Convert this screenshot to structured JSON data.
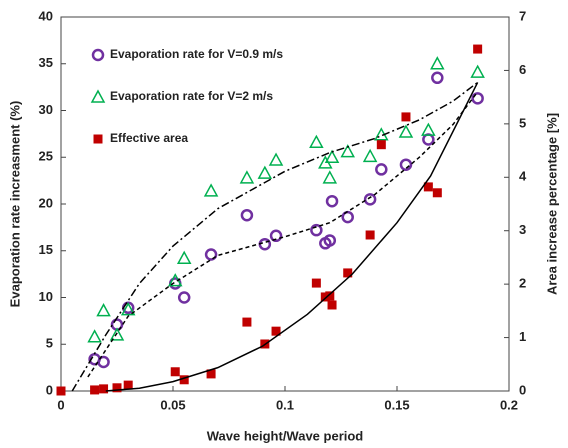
{
  "chart_data": {
    "type": "scatter",
    "x_label": "Wave height/Wave period",
    "y_label": "Evaporation rate increasment (%)",
    "y2_label": "Area increase percentage [%]",
    "xlim": [
      0,
      0.2
    ],
    "xticks": [
      0,
      0.05,
      0.1,
      0.15,
      0.2
    ],
    "ylim": [
      0,
      40
    ],
    "yticks": [
      0,
      5,
      10,
      15,
      20,
      25,
      30,
      35,
      40
    ],
    "y2lim": [
      0,
      7
    ],
    "y2ticks": [
      0,
      1,
      2,
      3,
      4,
      5,
      6,
      7
    ],
    "grid": false,
    "legend": "upper left",
    "series": [
      {
        "name": "Evaporation rate for V=0.9 m/s",
        "color": "#7030a0",
        "marker": "circle",
        "x": [
          0.015,
          0.019,
          0.025,
          0.03,
          0.051,
          0.055,
          0.067,
          0.083,
          0.091,
          0.096,
          0.114,
          0.118,
          0.12,
          0.121,
          0.128,
          0.138,
          0.143,
          0.154,
          0.164,
          0.168,
          0.186
        ],
        "values": [
          3.4,
          3.1,
          7.1,
          8.9,
          11.5,
          10.0,
          14.6,
          18.8,
          15.7,
          16.6,
          17.2,
          15.8,
          16.1,
          20.3,
          18.6,
          20.5,
          23.7,
          24.2,
          26.9,
          33.5,
          31.3
        ]
      },
      {
        "name": "Evaporation rate for V=2 m/s",
        "color": "#00b050",
        "marker": "triangle",
        "x": [
          0.015,
          0.019,
          0.025,
          0.03,
          0.051,
          0.055,
          0.067,
          0.083,
          0.091,
          0.096,
          0.114,
          0.118,
          0.12,
          0.121,
          0.128,
          0.138,
          0.143,
          0.154,
          0.164,
          0.168,
          0.186
        ],
        "values": [
          5.8,
          8.6,
          6.0,
          8.7,
          11.8,
          14.2,
          21.4,
          22.8,
          23.3,
          24.7,
          26.6,
          24.4,
          22.8,
          25.0,
          25.6,
          25.1,
          27.4,
          27.7,
          27.9,
          35.0,
          34.1
        ]
      },
      {
        "name": "Effective area",
        "color": "#c00000",
        "marker": "square",
        "axis": "y2",
        "x": [
          0,
          0.015,
          0.019,
          0.025,
          0.03,
          0.051,
          0.055,
          0.067,
          0.083,
          0.091,
          0.096,
          0.114,
          0.118,
          0.12,
          0.121,
          0.128,
          0.138,
          0.143,
          0.154,
          0.164,
          0.168,
          0.186
        ],
        "values": [
          0,
          0.02,
          0.04,
          0.06,
          0.11,
          0.36,
          0.21,
          0.32,
          1.29,
          0.88,
          1.12,
          2.02,
          1.76,
          1.78,
          1.61,
          2.21,
          2.92,
          4.61,
          5.13,
          3.82,
          3.71,
          6.4
        ]
      },
      {
        "color": "#000000",
        "marker": "none",
        "dash": "4 3",
        "x": [
          0.012,
          0.03,
          0.05,
          0.07,
          0.1,
          0.12,
          0.14,
          0.16,
          0.175,
          0.186
        ],
        "values": [
          1.5,
          8.0,
          11.5,
          14.5,
          16.5,
          18.0,
          21.0,
          25.0,
          28.5,
          32.0
        ]
      },
      {
        "color": "#000000",
        "marker": "none",
        "dash": "8 3 2 3",
        "x": [
          0.005,
          0.02,
          0.035,
          0.05,
          0.07,
          0.1,
          0.12,
          0.14,
          0.16,
          0.175,
          0.186
        ],
        "values": [
          0.0,
          6.0,
          11.5,
          15.5,
          19.5,
          23.5,
          25.5,
          27.0,
          29.0,
          31.0,
          33.0
        ]
      },
      {
        "color": "#000000",
        "marker": "none",
        "dash": "none",
        "x": [
          0.02,
          0.035,
          0.05,
          0.07,
          0.09,
          0.11,
          0.13,
          0.15,
          0.165,
          0.186
        ],
        "values": [
          0.0,
          0.3,
          1.0,
          2.5,
          4.8,
          8.2,
          12.5,
          18.0,
          23.0,
          33.0
        ]
      }
    ]
  }
}
